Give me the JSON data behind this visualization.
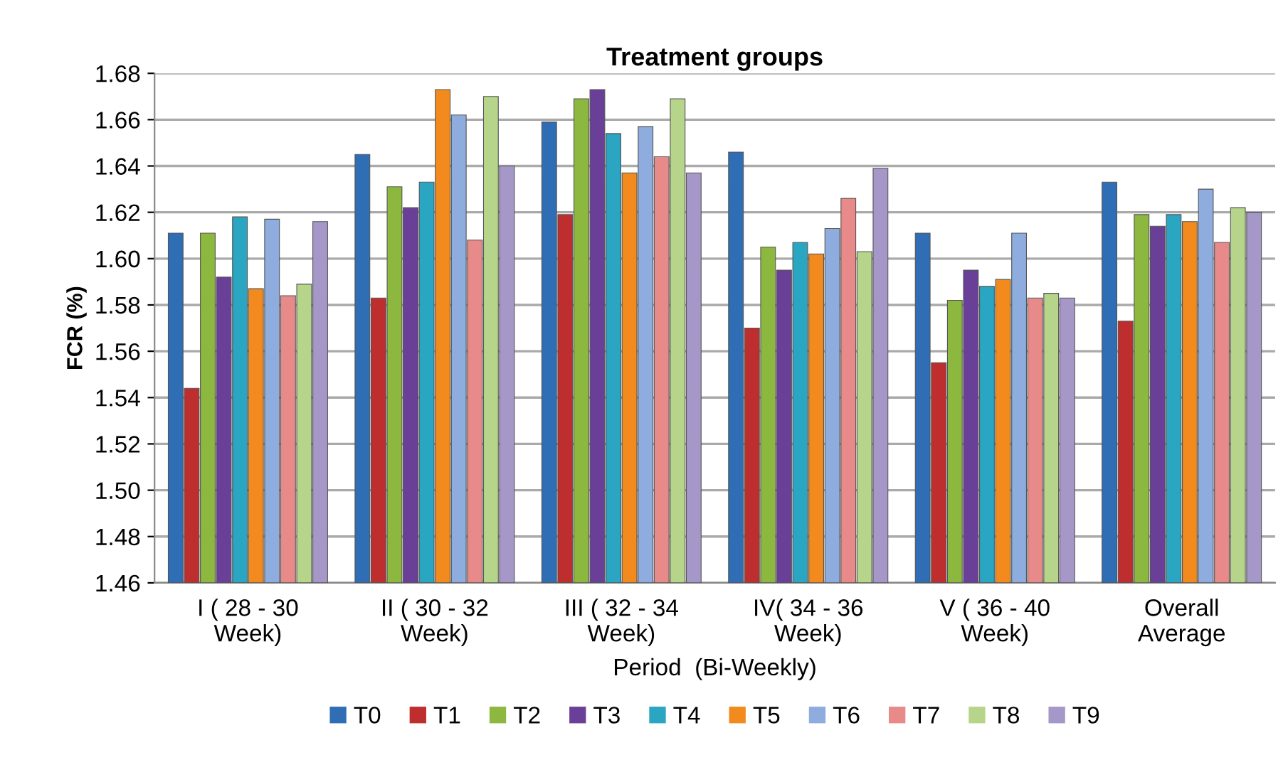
{
  "chart_data": {
    "type": "bar",
    "title": "Treatment groups",
    "xlabel": "Period  (Bi-Weekly)",
    "ylabel": "FCR (%)",
    "categories": [
      "I ( 28 - 30\nWeek)",
      "II ( 30 - 32\nWeek)",
      "III ( 32 - 34\nWeek)",
      "IV( 34 - 36\nWeek)",
      "V ( 36 - 40\nWeek)",
      "Overall\nAverage"
    ],
    "series": [
      {
        "name": "T0",
        "color": "#2f6db5",
        "values": [
          1.611,
          1.645,
          1.659,
          1.646,
          1.611,
          1.633
        ]
      },
      {
        "name": "T1",
        "color": "#be2e2e",
        "values": [
          1.544,
          1.583,
          1.619,
          1.57,
          1.555,
          1.573
        ]
      },
      {
        "name": "T2",
        "color": "#8db83f",
        "values": [
          1.611,
          1.631,
          1.669,
          1.605,
          1.582,
          1.619
        ]
      },
      {
        "name": "T3",
        "color": "#6a3f98",
        "values": [
          1.592,
          1.622,
          1.673,
          1.595,
          1.595,
          1.614
        ]
      },
      {
        "name": "T4",
        "color": "#2aa5c2",
        "values": [
          1.618,
          1.633,
          1.654,
          1.607,
          1.588,
          1.619
        ]
      },
      {
        "name": "T5",
        "color": "#f28a1e",
        "values": [
          1.587,
          1.673,
          1.637,
          1.602,
          1.591,
          1.616
        ]
      },
      {
        "name": "T6",
        "color": "#8eacdd",
        "values": [
          1.617,
          1.662,
          1.657,
          1.613,
          1.611,
          1.63
        ]
      },
      {
        "name": "T7",
        "color": "#e88a8a",
        "values": [
          1.584,
          1.608,
          1.644,
          1.626,
          1.583,
          1.607
        ]
      },
      {
        "name": "T8",
        "color": "#b6d58a",
        "values": [
          1.589,
          1.67,
          1.669,
          1.603,
          1.585,
          1.622
        ]
      },
      {
        "name": "T9",
        "color": "#a697c9",
        "values": [
          1.616,
          1.64,
          1.637,
          1.639,
          1.583,
          1.62
        ]
      }
    ],
    "ylim": [
      1.46,
      1.68
    ],
    "yticks": [
      {
        "value": 1.46,
        "label": "1.46"
      },
      {
        "value": 1.48,
        "label": "1.48"
      },
      {
        "value": 1.5,
        "label": "1.50"
      },
      {
        "value": 1.52,
        "label": "1.52"
      },
      {
        "value": 1.54,
        "label": "1.54"
      },
      {
        "value": 1.56,
        "label": "1.56"
      },
      {
        "value": 1.58,
        "label": "1.58"
      },
      {
        "value": 1.6,
        "label": "1.60"
      },
      {
        "value": 1.62,
        "label": "1.62"
      },
      {
        "value": 1.64,
        "label": "1.64"
      },
      {
        "value": 1.66,
        "label": "1.66"
      },
      {
        "value": 1.68,
        "label": "1.68"
      }
    ],
    "grid": "y",
    "legend": "bottom"
  }
}
